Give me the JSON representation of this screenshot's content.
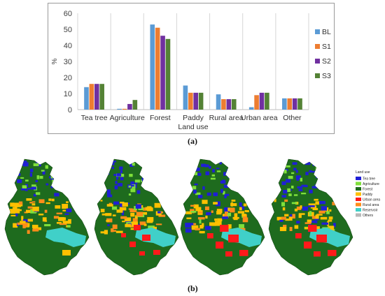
{
  "chart_data": {
    "type": "bar",
    "categories": [
      "Tea tree",
      "Agriculture",
      "Forest",
      "Paddy",
      "Rural area",
      "Urban area",
      "Other"
    ],
    "series": [
      {
        "name": "BL",
        "color": "#5b9bd5",
        "values": [
          14,
          0.5,
          53,
          15,
          9.5,
          1.5,
          7
        ]
      },
      {
        "name": "S1",
        "color": "#ed7d31",
        "values": [
          16,
          0.5,
          51,
          10.5,
          6.5,
          9,
          7
        ]
      },
      {
        "name": "S2",
        "color": "#7030a0",
        "values": [
          16,
          3.5,
          46,
          10.5,
          6.5,
          10.5,
          7
        ]
      },
      {
        "name": "S3",
        "color": "#548235",
        "values": [
          16,
          6,
          44,
          10.5,
          6.5,
          10.5,
          7
        ]
      }
    ],
    "yticks": [
      0,
      10,
      20,
      30,
      40,
      50,
      60
    ],
    "ylim": [
      0,
      60
    ],
    "ylabel": "%",
    "xlabel": "Land use",
    "legend_position": "right",
    "grid": "vertical"
  },
  "captions": {
    "a": "(a)",
    "b": "(b)"
  },
  "maps": {
    "legend_title": "Land use",
    "legend": [
      {
        "label": "Tea tree",
        "color": "#1f1fd6"
      },
      {
        "label": "Agriculture",
        "color": "#7fe03a"
      },
      {
        "label": "Forest",
        "color": "#1e6b1e"
      },
      {
        "label": "Paddy",
        "color": "#ffc000"
      },
      {
        "label": "Urban area",
        "color": "#ff1a1a"
      },
      {
        "label": "Rural area",
        "color": "#ff8c1a"
      },
      {
        "label": "Reservoir",
        "color": "#40d0c8"
      },
      {
        "label": "Others",
        "color": "#b8b8b8"
      }
    ]
  }
}
